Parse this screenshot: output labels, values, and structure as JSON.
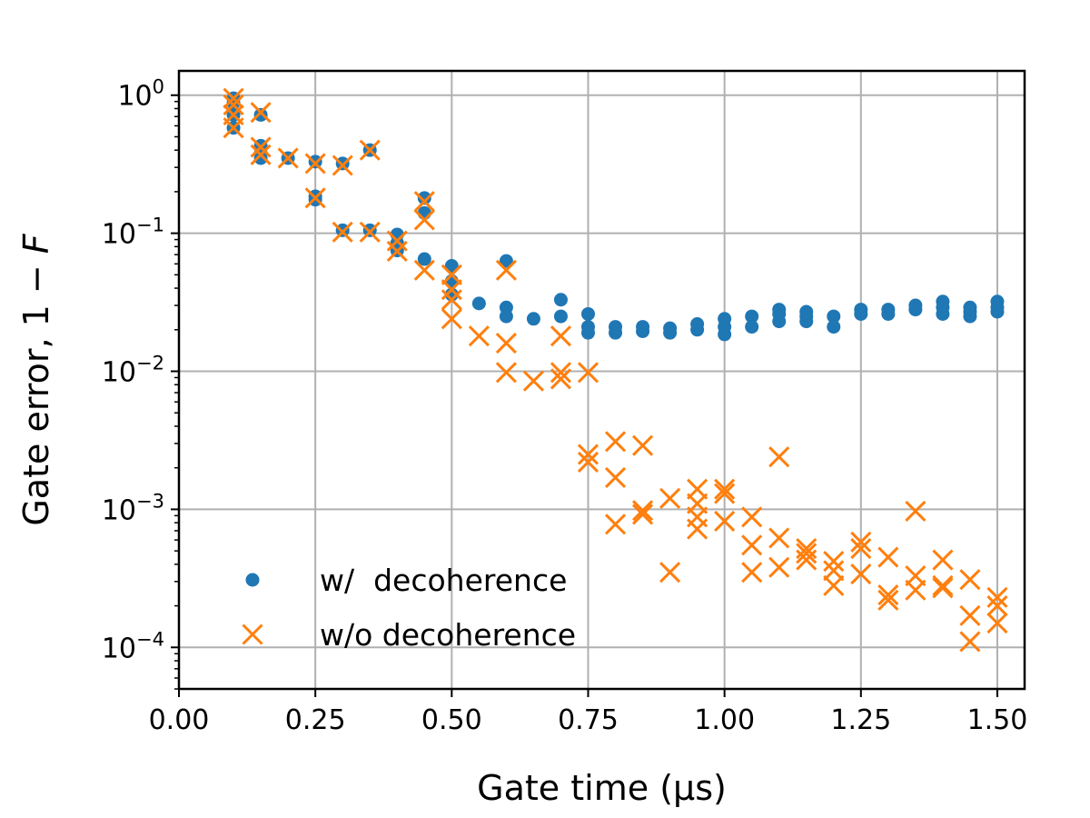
{
  "chart_data": {
    "type": "scatter",
    "title": "",
    "xlabel": "Gate time (µs)",
    "ylabel": "Gate error, 1 − F",
    "xlim": [
      0.0,
      1.55
    ],
    "ylim": [
      5e-05,
      1.5
    ],
    "yscale": "log",
    "grid": true,
    "legend_position": "lower-left",
    "x_ticks": [
      "0.00",
      "0.25",
      "0.50",
      "0.75",
      "1.00",
      "1.25",
      "1.50"
    ],
    "x_tick_values": [
      0.0,
      0.25,
      0.5,
      0.75,
      1.0,
      1.25,
      1.5
    ],
    "y_ticks": [
      {
        "value": 0.0001,
        "base": "10",
        "exp": "−4"
      },
      {
        "value": 0.001,
        "base": "10",
        "exp": "−3"
      },
      {
        "value": 0.01,
        "base": "10",
        "exp": "−2"
      },
      {
        "value": 0.1,
        "base": "10",
        "exp": "−1"
      },
      {
        "value": 1,
        "base": "10",
        "exp": "0"
      }
    ],
    "series": [
      {
        "name": "w/  decoherence",
        "marker": "dot",
        "color": "#1f77b4",
        "points": [
          [
            0.1,
            0.88
          ],
          [
            0.1,
            0.58
          ],
          [
            0.1,
            0.72
          ],
          [
            0.1,
            0.95
          ],
          [
            0.15,
            0.72
          ],
          [
            0.15,
            0.43
          ],
          [
            0.15,
            0.35
          ],
          [
            0.15,
            0.38
          ],
          [
            0.2,
            0.35
          ],
          [
            0.25,
            0.33
          ],
          [
            0.25,
            0.185
          ],
          [
            0.25,
            0.175
          ],
          [
            0.3,
            0.32
          ],
          [
            0.3,
            0.105
          ],
          [
            0.35,
            0.4
          ],
          [
            0.35,
            0.105
          ],
          [
            0.4,
            0.098
          ],
          [
            0.4,
            0.085
          ],
          [
            0.4,
            0.075
          ],
          [
            0.45,
            0.18
          ],
          [
            0.45,
            0.14
          ],
          [
            0.45,
            0.065
          ],
          [
            0.5,
            0.058
          ],
          [
            0.5,
            0.045
          ],
          [
            0.5,
            0.036
          ],
          [
            0.55,
            0.031
          ],
          [
            0.6,
            0.063
          ],
          [
            0.6,
            0.029
          ],
          [
            0.6,
            0.025
          ],
          [
            0.65,
            0.024
          ],
          [
            0.7,
            0.033
          ],
          [
            0.7,
            0.025
          ],
          [
            0.75,
            0.026
          ],
          [
            0.75,
            0.021
          ],
          [
            0.75,
            0.019
          ],
          [
            0.8,
            0.021
          ],
          [
            0.8,
            0.019
          ],
          [
            0.85,
            0.021
          ],
          [
            0.85,
            0.0195
          ],
          [
            0.9,
            0.0205
          ],
          [
            0.9,
            0.019
          ],
          [
            0.95,
            0.022
          ],
          [
            0.95,
            0.02
          ],
          [
            1.0,
            0.024
          ],
          [
            1.0,
            0.021
          ],
          [
            1.0,
            0.0185
          ],
          [
            1.05,
            0.025
          ],
          [
            1.05,
            0.021
          ],
          [
            1.1,
            0.028
          ],
          [
            1.1,
            0.026
          ],
          [
            1.1,
            0.023
          ],
          [
            1.15,
            0.027
          ],
          [
            1.15,
            0.025
          ],
          [
            1.15,
            0.023
          ],
          [
            1.2,
            0.025
          ],
          [
            1.2,
            0.021
          ],
          [
            1.25,
            0.028
          ],
          [
            1.25,
            0.026
          ],
          [
            1.3,
            0.028
          ],
          [
            1.3,
            0.026
          ],
          [
            1.35,
            0.03
          ],
          [
            1.35,
            0.028
          ],
          [
            1.4,
            0.032
          ],
          [
            1.4,
            0.029
          ],
          [
            1.4,
            0.026
          ],
          [
            1.45,
            0.029
          ],
          [
            1.45,
            0.027
          ],
          [
            1.45,
            0.025
          ],
          [
            1.5,
            0.032
          ],
          [
            1.5,
            0.029
          ],
          [
            1.5,
            0.027
          ]
        ]
      },
      {
        "name": "w/o decoherence",
        "marker": "x",
        "color": "#ff7f0e",
        "points": [
          [
            0.1,
            0.95
          ],
          [
            0.1,
            0.85
          ],
          [
            0.1,
            0.72
          ],
          [
            0.1,
            0.58
          ],
          [
            0.15,
            0.75
          ],
          [
            0.15,
            0.42
          ],
          [
            0.15,
            0.37
          ],
          [
            0.2,
            0.35
          ],
          [
            0.25,
            0.32
          ],
          [
            0.25,
            0.18
          ],
          [
            0.3,
            0.31
          ],
          [
            0.3,
            0.102
          ],
          [
            0.35,
            0.4
          ],
          [
            0.35,
            0.102
          ],
          [
            0.4,
            0.088
          ],
          [
            0.4,
            0.074
          ],
          [
            0.45,
            0.17
          ],
          [
            0.45,
            0.125
          ],
          [
            0.45,
            0.054
          ],
          [
            0.5,
            0.05
          ],
          [
            0.5,
            0.039
          ],
          [
            0.5,
            0.033
          ],
          [
            0.5,
            0.024
          ],
          [
            0.55,
            0.018
          ],
          [
            0.6,
            0.054
          ],
          [
            0.6,
            0.016
          ],
          [
            0.6,
            0.0098
          ],
          [
            0.65,
            0.0085
          ],
          [
            0.7,
            0.018
          ],
          [
            0.7,
            0.0098
          ],
          [
            0.7,
            0.0088
          ],
          [
            0.75,
            0.0098
          ],
          [
            0.75,
            0.0025
          ],
          [
            0.75,
            0.0022
          ],
          [
            0.8,
            0.0031
          ],
          [
            0.8,
            0.0017
          ],
          [
            0.8,
            0.00078
          ],
          [
            0.85,
            0.0029
          ],
          [
            0.85,
            0.00098
          ],
          [
            0.85,
            0.00092
          ],
          [
            0.9,
            0.0012
          ],
          [
            0.9,
            0.00035
          ],
          [
            0.95,
            0.0014
          ],
          [
            0.95,
            0.0011
          ],
          [
            0.95,
            0.00088
          ],
          [
            0.95,
            0.00072
          ],
          [
            1.0,
            0.0014
          ],
          [
            1.0,
            0.0013
          ],
          [
            1.0,
            0.00082
          ],
          [
            1.05,
            0.00088
          ],
          [
            1.05,
            0.00055
          ],
          [
            1.05,
            0.00035
          ],
          [
            1.1,
            0.0024
          ],
          [
            1.1,
            0.00062
          ],
          [
            1.1,
            0.00038
          ],
          [
            1.15,
            0.00052
          ],
          [
            1.15,
            0.00048
          ],
          [
            1.15,
            0.00043
          ],
          [
            1.2,
            0.00042
          ],
          [
            1.2,
            0.00036
          ],
          [
            1.2,
            0.00028
          ],
          [
            1.25,
            0.00058
          ],
          [
            1.25,
            0.00052
          ],
          [
            1.25,
            0.00034
          ],
          [
            1.3,
            0.00045
          ],
          [
            1.3,
            0.00024
          ],
          [
            1.3,
            0.00022
          ],
          [
            1.35,
            0.00097
          ],
          [
            1.35,
            0.00033
          ],
          [
            1.35,
            0.00026
          ],
          [
            1.4,
            0.00043
          ],
          [
            1.4,
            0.00028
          ],
          [
            1.4,
            0.00027
          ],
          [
            1.45,
            0.00031
          ],
          [
            1.45,
            0.00017
          ],
          [
            1.45,
            0.00011
          ],
          [
            1.5,
            0.00023
          ],
          [
            1.5,
            0.0002
          ],
          [
            1.5,
            0.00015
          ]
        ]
      }
    ]
  }
}
